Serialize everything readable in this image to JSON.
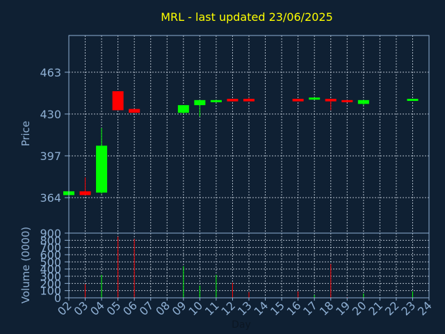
{
  "chart_data": {
    "title": "MRL - last updated 23/06/2025",
    "colors": {
      "background": "#0f2033",
      "panel_border": "#8fb0d4",
      "grid": "#d9e2ee",
      "up": "#00ff00",
      "down": "#ff0000",
      "title": "#ffff00",
      "ticks": "#8fb0d4"
    },
    "price_panel": {
      "type": "candlestick",
      "ylabel": "Price",
      "ylim": [
        336,
        492
      ],
      "yticks": [
        364,
        397,
        430,
        463
      ],
      "candles": [
        {
          "day": "02",
          "open": 366,
          "close": 369,
          "high": 369,
          "low": 366
        },
        {
          "day": "03",
          "open": 369,
          "close": 366,
          "high": 380,
          "low": 366
        },
        {
          "day": "04",
          "open": 368,
          "close": 405,
          "high": 419,
          "low": 367
        },
        {
          "day": "05",
          "open": 448,
          "close": 433,
          "high": 448,
          "low": 433
        },
        {
          "day": "06",
          "open": 434,
          "close": 431,
          "high": 434,
          "low": 431
        },
        {
          "day": "09",
          "open": 431,
          "close": 437,
          "high": 437,
          "low": 430
        },
        {
          "day": "10",
          "open": 437,
          "close": 441,
          "high": 441,
          "low": 428
        },
        {
          "day": "11",
          "open": 440,
          "close": 441,
          "high": 441,
          "low": 440
        },
        {
          "day": "12",
          "open": 442,
          "close": 440,
          "high": 442,
          "low": 440
        },
        {
          "day": "13",
          "open": 442,
          "close": 440,
          "high": 443,
          "low": 440
        },
        {
          "day": "16",
          "open": 442,
          "close": 440,
          "high": 442,
          "low": 440
        },
        {
          "day": "17",
          "open": 442,
          "close": 443,
          "high": 443,
          "low": 442
        },
        {
          "day": "18",
          "open": 442,
          "close": 440,
          "high": 442,
          "low": 433
        },
        {
          "day": "19",
          "open": 441,
          "close": 440,
          "high": 441,
          "low": 440
        },
        {
          "day": "20",
          "open": 438,
          "close": 441,
          "high": 441,
          "low": 437
        },
        {
          "day": "23",
          "open": 441,
          "close": 442,
          "high": 442,
          "low": 441
        }
      ]
    },
    "volume_panel": {
      "type": "bar",
      "ylabel": "Volume (0000)",
      "ylim": [
        0,
        900
      ],
      "yticks": [
        0,
        100,
        200,
        300,
        400,
        500,
        600,
        700,
        800,
        900
      ],
      "bars": [
        {
          "day": "02",
          "value": 5,
          "direction": "up"
        },
        {
          "day": "03",
          "value": 190,
          "direction": "down"
        },
        {
          "day": "04",
          "value": 320,
          "direction": "up"
        },
        {
          "day": "05",
          "value": 850,
          "direction": "down"
        },
        {
          "day": "06",
          "value": 820,
          "direction": "down"
        },
        {
          "day": "09",
          "value": 440,
          "direction": "up"
        },
        {
          "day": "10",
          "value": 170,
          "direction": "up"
        },
        {
          "day": "11",
          "value": 320,
          "direction": "up"
        },
        {
          "day": "12",
          "value": 210,
          "direction": "down"
        },
        {
          "day": "13",
          "value": 80,
          "direction": "down"
        },
        {
          "day": "16",
          "value": 90,
          "direction": "down"
        },
        {
          "day": "17",
          "value": 40,
          "direction": "up"
        },
        {
          "day": "18",
          "value": 470,
          "direction": "down"
        },
        {
          "day": "19",
          "value": 10,
          "direction": "down"
        },
        {
          "day": "20",
          "value": 60,
          "direction": "up"
        },
        {
          "day": "23",
          "value": 90,
          "direction": "up"
        }
      ]
    },
    "x_axis": {
      "xlabel": "Day",
      "ticks": [
        "02",
        "03",
        "04",
        "05",
        "06",
        "07",
        "08",
        "09",
        "10",
        "11",
        "12",
        "13",
        "14",
        "15",
        "16",
        "17",
        "18",
        "19",
        "20",
        "21",
        "22",
        "23",
        "24"
      ]
    }
  }
}
